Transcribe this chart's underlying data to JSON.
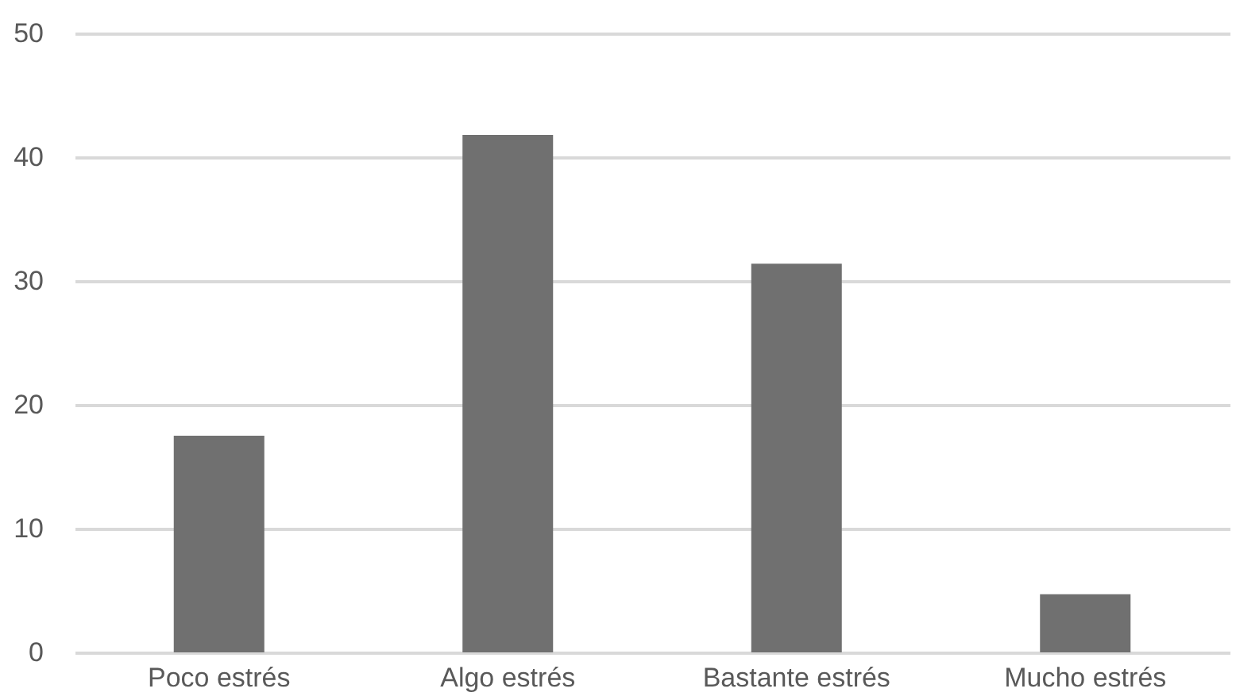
{
  "chart_data": {
    "type": "bar",
    "categories": [
      "Poco estrés",
      "Algo estrés",
      "Bastante estrés",
      "Mucho estrés"
    ],
    "values": [
      17.5,
      41.8,
      31.4,
      4.7
    ],
    "color": "#707070",
    "ylim": [
      0,
      50
    ],
    "yticks": [
      0,
      10,
      20,
      30,
      40,
      50
    ],
    "grid": "y"
  }
}
